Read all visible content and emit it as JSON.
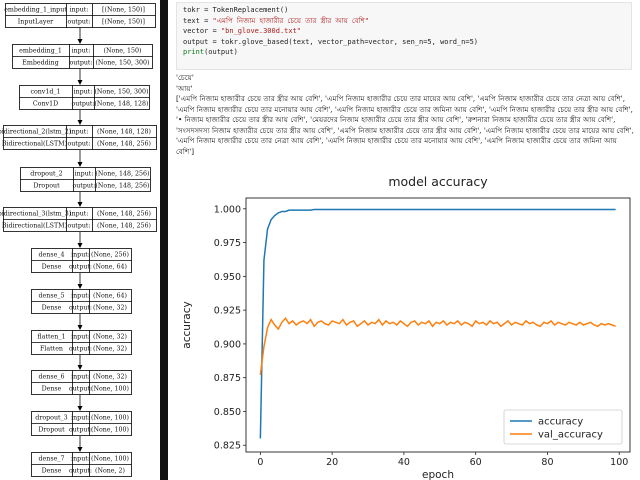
{
  "model_diagram": {
    "layers": [
      {
        "name": "embedding_1_input",
        "type": "InputLayer",
        "input": "[(None, 150)]",
        "output": "[(None, 150)]"
      },
      {
        "name": "embedding_1",
        "type": "Embedding",
        "input": "(None, 150)",
        "output": "(None, 150, 300)"
      },
      {
        "name": "conv1d_1",
        "type": "Conv1D",
        "input": "(None, 150, 300)",
        "output": "(None, 148, 128)"
      },
      {
        "name": "bidirectional_2(lstm_2)",
        "type": "Bidirectional(LSTM)",
        "input": "(None, 148, 128)",
        "output": "(None, 148, 256)"
      },
      {
        "name": "dropout_2",
        "type": "Dropout",
        "input": "(None, 148, 256)",
        "output": "(None, 148, 256)"
      },
      {
        "name": "bidirectional_3(lstm_3)",
        "type": "Bidirectional(LSTM)",
        "input": "(None, 148, 256)",
        "output": "(None, 148, 256)"
      },
      {
        "name": "dense_4",
        "type": "Dense",
        "input": "(None, 256)",
        "output": "(None, 64)"
      },
      {
        "name": "dense_5",
        "type": "Dense",
        "input": "(None, 64)",
        "output": "(None, 32)"
      },
      {
        "name": "flatten_1",
        "type": "Flatten",
        "input": "(None, 32)",
        "output": "(None, 32)"
      },
      {
        "name": "dense_6",
        "type": "Dense",
        "input": "(None, 32)",
        "output": "(None, 100)"
      },
      {
        "name": "dropout_3",
        "type": "Dropout",
        "input": "(None, 100)",
        "output": "(None, 100)"
      },
      {
        "name": "dense_7",
        "type": "Dense",
        "input": "(None, 100)",
        "output": "(None, 2)"
      }
    ],
    "input_label": "input:",
    "output_label": "output:"
  },
  "code_cell": {
    "lines": [
      "tokr = TokenReplacement()",
      "text = \"এমপি নিজাম হাজারীর চেয়ে তার স্ত্রীর আয় বেশি\"",
      "vector = \"bn_glove.300d.txt\"",
      "output = tokr.glove_based(text, vector_path=vector, sen_n=5, word_n=5)",
      "print(output)"
    ]
  },
  "output": {
    "line1": "'চেয়ে'",
    "line2": "'আয়'",
    "list_text": "['এমপি নিজাম হাজারীর চেয়ে তার স্ত্রীর আয় বেশি', 'এমপি নিজাম হাজারীর চেয়ে তার মায়ের আয় বেশি', 'এমপি নিজাম হাজারীর চেয়ে তার নেত্রা আয় বেশি', 'এমপি নিজাম হাজারীর চেয়ে তার মনোয়ার আয় বেশি', 'এমপি নিজাম হাজারীর চেয়ে তার জমিনা আয় বেশি', 'এমপি নিজাম হাজারীর চেয়ে তার স্ত্রীর আয় বেশি', '• নিজাম হাজারীর চেয়ে তার স্ত্রীর আয় বেশি', 'মেয়রদের নিজাম হাজারীর চেয়ে তার স্ত্রীর আয় বেশি', 'রুশনারা নিজাম হাজারীর চেয়ে তার স্ত্রীর আয় বেশি', 'সংসদসদস্য নিজাম হাজারীর চেয়ে তার স্ত্রীর আয় বেশি', 'এমপি নিজাম হাজারীর চেয়ে তার স্ত্রীর আয় বেশি', 'এমপি নিজাম হাজারীর চেয়ে তার মায়ের আয় বেশি', 'এমপি নিজাম হাজারীর চেয়ে তার নেত্রা আয় বেশি', 'এমপি নিজাম হাজারীর চেয়ে তার মনোয়ার আয় বেশি', 'এমপি নিজাম হাজারীর চেয়ে তার জমিনা আয় বেশি']"
  },
  "chart_data": {
    "type": "line",
    "title": "model accuracy",
    "xlabel": "epoch",
    "ylabel": "accuracy",
    "xlim": [
      -4,
      103
    ],
    "ylim": [
      0.82,
      1.008
    ],
    "xticks": [
      0,
      20,
      40,
      60,
      80,
      100
    ],
    "yticks": [
      0.825,
      0.85,
      0.875,
      0.9,
      0.925,
      0.95,
      0.975,
      1.0
    ],
    "ytick_labels": [
      "0.825",
      "0.850",
      "0.875",
      "0.900",
      "0.925",
      "0.950",
      "0.975",
      "1.000"
    ],
    "legend_position": "bottom-right",
    "series": [
      {
        "name": "accuracy",
        "color": "#1f77b4",
        "values": [
          0.83,
          0.962,
          0.985,
          0.992,
          0.995,
          0.997,
          0.998,
          0.998,
          0.999,
          0.999,
          0.999,
          0.999,
          0.999,
          0.999,
          0.999,
          0.9995,
          0.9995,
          0.9995,
          0.9995,
          0.9995,
          0.9995,
          0.9995,
          0.9995,
          0.9995,
          0.9995,
          0.9995,
          0.9995,
          0.9995,
          0.9995,
          0.9995,
          0.9995,
          0.9995,
          0.9995,
          0.9995,
          0.9995,
          0.9995,
          0.9995,
          0.9995,
          0.9995,
          0.9995,
          0.9995,
          0.9995,
          0.9995,
          0.9995,
          0.9995,
          0.9995,
          0.9995,
          0.9995,
          0.9995,
          0.9995,
          0.9995,
          0.9995,
          0.9995,
          0.9995,
          0.9995,
          0.9995,
          0.9995,
          0.9995,
          0.9995,
          0.9995,
          0.9995,
          0.9995,
          0.9995,
          0.9995,
          0.9995,
          0.9995,
          0.9995,
          0.9995,
          0.9995,
          0.9995,
          0.9995,
          0.9995,
          0.9995,
          0.9995,
          0.9995,
          0.9995,
          0.9995,
          0.9995,
          0.9995,
          0.9995,
          0.9995,
          0.9995,
          0.9995,
          0.9995,
          0.9995,
          0.9995,
          0.9995,
          0.9995,
          0.9995,
          0.9995,
          0.9995,
          0.9995,
          0.9995,
          0.9995,
          0.9995,
          0.9995,
          0.9995,
          0.9995,
          0.9995,
          0.9995
        ]
      },
      {
        "name": "val_accuracy",
        "color": "#ff7f0e",
        "values": [
          0.877,
          0.898,
          0.912,
          0.918,
          0.914,
          0.911,
          0.916,
          0.919,
          0.915,
          0.917,
          0.914,
          0.916,
          0.917,
          0.915,
          0.918,
          0.913,
          0.916,
          0.917,
          0.915,
          0.914,
          0.917,
          0.916,
          0.915,
          0.918,
          0.914,
          0.916,
          0.917,
          0.913,
          0.915,
          0.917,
          0.914,
          0.916,
          0.915,
          0.918,
          0.914,
          0.917,
          0.915,
          0.916,
          0.914,
          0.917,
          0.915,
          0.913,
          0.916,
          0.917,
          0.914,
          0.916,
          0.915,
          0.917,
          0.913,
          0.916,
          0.915,
          0.917,
          0.914,
          0.916,
          0.915,
          0.917,
          0.914,
          0.916,
          0.915,
          0.913,
          0.917,
          0.915,
          0.916,
          0.914,
          0.917,
          0.915,
          0.916,
          0.913,
          0.915,
          0.917,
          0.914,
          0.916,
          0.915,
          0.914,
          0.917,
          0.915,
          0.916,
          0.914,
          0.913,
          0.916,
          0.915,
          0.917,
          0.914,
          0.916,
          0.915,
          0.914,
          0.916,
          0.915,
          0.914,
          0.916,
          0.914,
          0.915,
          0.916,
          0.914,
          0.913,
          0.915,
          0.914,
          0.915,
          0.914,
          0.913
        ]
      }
    ]
  }
}
